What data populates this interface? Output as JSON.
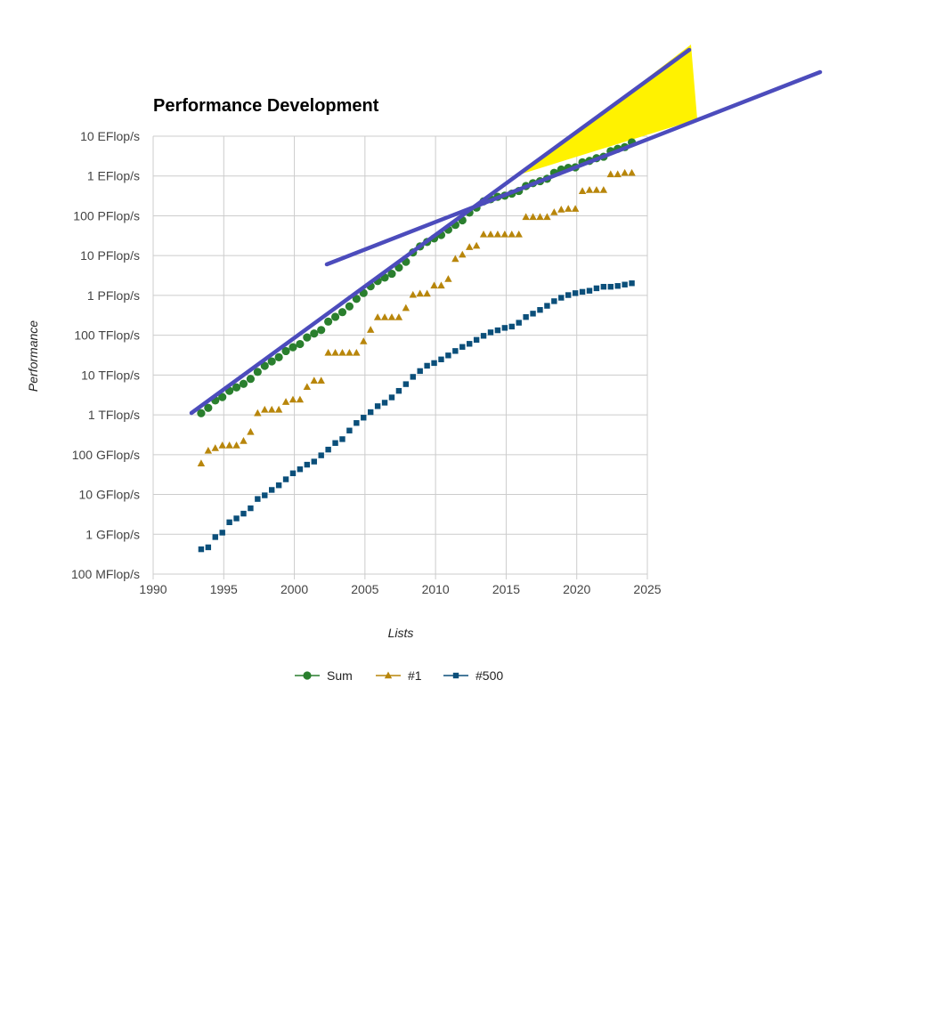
{
  "chart_data": {
    "type": "scatter",
    "title": "Performance Development",
    "xlabel": "Lists",
    "ylabel": "Performance",
    "y_scale": "log",
    "x_ticks": [
      1990,
      1995,
      2000,
      2005,
      2010,
      2015,
      2020,
      2025
    ],
    "xlim": [
      1990,
      2025
    ],
    "ylim_gflops": [
      0.1,
      10000000000
    ],
    "y_ticks": [
      {
        "value": 10000000000,
        "label": "10 EFlop/s"
      },
      {
        "value": 1000000000,
        "label": "1 EFlop/s"
      },
      {
        "value": 100000000,
        "label": "100 PFlop/s"
      },
      {
        "value": 10000000,
        "label": "10 PFlop/s"
      },
      {
        "value": 1000000,
        "label": "1 PFlop/s"
      },
      {
        "value": 100000,
        "label": "100 TFlop/s"
      },
      {
        "value": 10000,
        "label": "10 TFlop/s"
      },
      {
        "value": 1000,
        "label": "1 TFlop/s"
      },
      {
        "value": 100,
        "label": "100 GFlop/s"
      },
      {
        "value": 10,
        "label": "10 GFlop/s"
      },
      {
        "value": 1,
        "label": "1 GFlop/s"
      },
      {
        "value": 0.1,
        "label": "100 MFlop/s"
      }
    ],
    "legend_position": "bottom",
    "grid": true,
    "series": [
      {
        "name": "Sum",
        "color": "#2a7f2e",
        "marker": "circle",
        "x": [
          1993.4,
          1993.9,
          1994.4,
          1994.9,
          1995.4,
          1995.9,
          1996.4,
          1996.9,
          1997.4,
          1997.9,
          1998.4,
          1998.9,
          1999.4,
          1999.9,
          2000.4,
          2000.9,
          2001.4,
          2001.9,
          2002.4,
          2002.9,
          2003.4,
          2003.9,
          2004.4,
          2004.9,
          2005.4,
          2005.9,
          2006.4,
          2006.9,
          2007.4,
          2007.9,
          2008.4,
          2008.9,
          2009.4,
          2009.9,
          2010.4,
          2010.9,
          2011.4,
          2011.9,
          2012.4,
          2012.9,
          2013.4,
          2013.9,
          2014.4,
          2014.9,
          2015.4,
          2015.9,
          2016.4,
          2016.9,
          2017.4,
          2017.9,
          2018.4,
          2018.9,
          2019.4,
          2019.9,
          2020.4,
          2020.9,
          2021.4,
          2021.9,
          2022.4,
          2022.9,
          2023.4,
          2023.9
        ],
        "values": [
          1100,
          1500,
          2300,
          2800,
          4000,
          4900,
          6000,
          8000,
          12000,
          17000,
          22000,
          28000,
          40000,
          50000,
          60000,
          88000,
          110000,
          135000,
          220000,
          290000,
          380000,
          530000,
          820000,
          1150000,
          1700000,
          2300000,
          2800000,
          3500000,
          5000000,
          7000000,
          12000000,
          17000000,
          22000000,
          27000000,
          33000000,
          45000000,
          59000000,
          77000000,
          120000000,
          160000000,
          230000000,
          260000000,
          300000000,
          320000000,
          360000000,
          420000000,
          560000000,
          660000000,
          740000000,
          850000000,
          1200000000,
          1450000000,
          1600000000,
          1650000000,
          2200000000,
          2400000000,
          2800000000,
          3050000000,
          4200000000,
          4800000000,
          5300000000,
          7000000000
        ]
      },
      {
        "name": "#1",
        "color": "#b8860b",
        "marker": "triangle",
        "x": [
          1993.4,
          1993.9,
          1994.4,
          1994.9,
          1995.4,
          1995.9,
          1996.4,
          1996.9,
          1997.4,
          1997.9,
          1998.4,
          1998.9,
          1999.4,
          1999.9,
          2000.4,
          2000.9,
          2001.4,
          2001.9,
          2002.4,
          2002.9,
          2003.4,
          2003.9,
          2004.4,
          2004.9,
          2005.4,
          2005.9,
          2006.4,
          2006.9,
          2007.4,
          2007.9,
          2008.4,
          2008.9,
          2009.4,
          2009.9,
          2010.4,
          2010.9,
          2011.4,
          2011.9,
          2012.4,
          2012.9,
          2013.4,
          2013.9,
          2014.4,
          2014.9,
          2015.4,
          2015.9,
          2016.4,
          2016.9,
          2017.4,
          2017.9,
          2018.4,
          2018.9,
          2019.4,
          2019.9,
          2020.4,
          2020.9,
          2021.4,
          2021.9,
          2022.4,
          2022.9,
          2023.4,
          2023.9
        ],
        "values": [
          60,
          125,
          145,
          170,
          170,
          170,
          220,
          370,
          1100,
          1340,
          1340,
          1340,
          2100,
          2400,
          2400,
          5000,
          7200,
          7200,
          36000,
          36000,
          36000,
          36000,
          36000,
          70000,
          136000,
          281000,
          281000,
          281000,
          281000,
          480000,
          1030000,
          1100000,
          1100000,
          1760000,
          1760000,
          2570000,
          8200000,
          10500000,
          16300000,
          17600000,
          33900000,
          33900000,
          33900000,
          33900000,
          33900000,
          33900000,
          93000000,
          93000000,
          93000000,
          93000000,
          122000000,
          143000000,
          149000000,
          149000000,
          415000000,
          442000000,
          442000000,
          442000000,
          1100000000,
          1100000000,
          1190000000,
          1190000000
        ]
      },
      {
        "name": "#500",
        "color": "#0b4f7a",
        "marker": "square",
        "x": [
          1993.4,
          1993.9,
          1994.4,
          1994.9,
          1995.4,
          1995.9,
          1996.4,
          1996.9,
          1997.4,
          1997.9,
          1998.4,
          1998.9,
          1999.4,
          1999.9,
          2000.4,
          2000.9,
          2001.4,
          2001.9,
          2002.4,
          2002.9,
          2003.4,
          2003.9,
          2004.4,
          2004.9,
          2005.4,
          2005.9,
          2006.4,
          2006.9,
          2007.4,
          2007.9,
          2008.4,
          2008.9,
          2009.4,
          2009.9,
          2010.4,
          2010.9,
          2011.4,
          2011.9,
          2012.4,
          2012.9,
          2013.4,
          2013.9,
          2014.4,
          2014.9,
          2015.4,
          2015.9,
          2016.4,
          2016.9,
          2017.4,
          2017.9,
          2018.4,
          2018.9,
          2019.4,
          2019.9,
          2020.4,
          2020.9,
          2021.4,
          2021.9,
          2022.4,
          2022.9,
          2023.4,
          2023.9
        ],
        "values": [
          0.42,
          0.47,
          0.85,
          1.1,
          2.0,
          2.5,
          3.3,
          4.5,
          7.7,
          9.5,
          13,
          17,
          24,
          34,
          43,
          56,
          67,
          96,
          134,
          196,
          245,
          403,
          624,
          850,
          1170,
          1650,
          2020,
          2740,
          4000,
          5900,
          9000,
          12600,
          17100,
          20000,
          24700,
          31100,
          40200,
          50900,
          60800,
          76500,
          96600,
          118000,
          133000,
          153000,
          165000,
          206000,
          286000,
          349000,
          432000,
          548000,
          716000,
          874000,
          1020000,
          1140000,
          1230000,
          1310000,
          1510000,
          1650000,
          1650000,
          1730000,
          1870000,
          2020000
        ]
      }
    ]
  }
}
